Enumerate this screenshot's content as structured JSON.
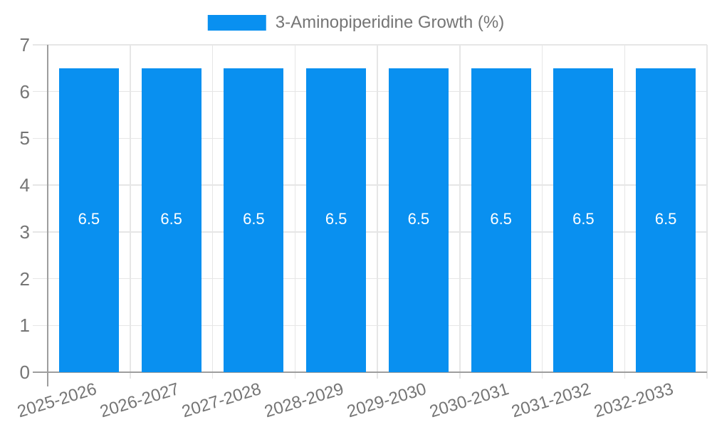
{
  "legend": {
    "label": "3-Aminopiperidine Growth (%)"
  },
  "style": {
    "bar_color": "#0990f0",
    "bar_label_color": "#ffffff",
    "tick_label_color": "#757575",
    "legend_text_color": "#757575",
    "axis_color": "#9e9e9e",
    "gridline_color": "#e6e6e6",
    "background": "#ffffff"
  },
  "chart_data": {
    "type": "bar",
    "title": "",
    "categories": [
      "2025-2026",
      "2026-2027",
      "2027-2028",
      "2028-2029",
      "2029-2030",
      "2030-2031",
      "2031-2032",
      "2032-2033"
    ],
    "series": [
      {
        "name": "3-Aminopiperidine Growth (%)",
        "values": [
          6.5,
          6.5,
          6.5,
          6.5,
          6.5,
          6.5,
          6.5,
          6.5
        ]
      }
    ],
    "bar_labels": [
      "6.5",
      "6.5",
      "6.5",
      "6.5",
      "6.5",
      "6.5",
      "6.5",
      "6.5"
    ],
    "xlabel": "",
    "ylabel": "",
    "ylim": [
      0,
      7
    ],
    "yticks": [
      0,
      1,
      2,
      3,
      4,
      5,
      6,
      7
    ],
    "grid": true,
    "legend_position": "top-center",
    "x_label_rotation_deg": -17
  }
}
